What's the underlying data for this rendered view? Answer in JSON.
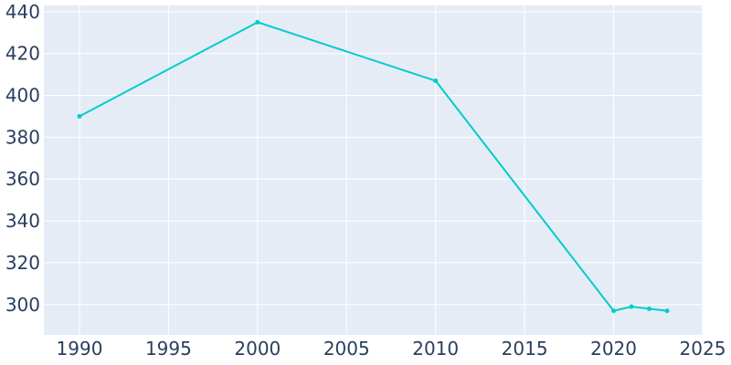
{
  "chart_data": {
    "type": "line",
    "title": "",
    "xlabel": "",
    "ylabel": "",
    "x": [
      1990,
      2000,
      2010,
      2020,
      2021,
      2022,
      2023
    ],
    "series": [
      {
        "values": [
          390,
          435,
          407,
          297,
          299,
          298,
          297
        ]
      }
    ],
    "xlim": [
      1988,
      2025
    ],
    "ylim": [
      285.5,
      443
    ],
    "x_ticks": [
      1990,
      1995,
      2000,
      2005,
      2010,
      2015,
      2020,
      2025
    ],
    "y_ticks": [
      300,
      320,
      340,
      360,
      380,
      400,
      420,
      440
    ],
    "grid": true,
    "legend": "none"
  },
  "colors": {
    "line": "#00cccc",
    "plot_background": "#e5ecf6",
    "grid": "#ffffff",
    "tick_text": "#2a3f5f"
  }
}
